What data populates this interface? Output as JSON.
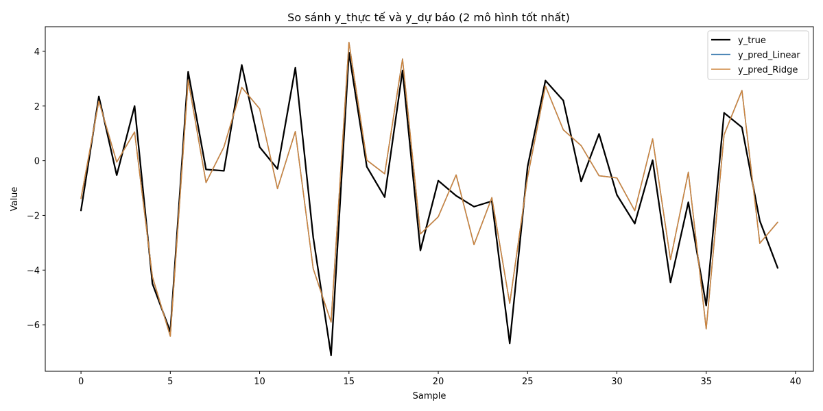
{
  "chart_data": {
    "type": "line",
    "title": "So sánh y_thực tế và y_dự báo (2 mô hình tốt nhất)",
    "xlabel": "Sample",
    "ylabel": "Value",
    "xlim": [
      -2,
      41
    ],
    "ylim": [
      -7.7,
      4.9
    ],
    "xticks": [
      0,
      5,
      10,
      15,
      20,
      25,
      30,
      35,
      40
    ],
    "yticks": [
      -6,
      -4,
      -2,
      0,
      2,
      4
    ],
    "legend_position": "top-right",
    "grid": false,
    "x": [
      0,
      1,
      2,
      3,
      4,
      5,
      6,
      7,
      8,
      9,
      10,
      11,
      12,
      13,
      14,
      15,
      16,
      17,
      18,
      19,
      20,
      21,
      22,
      23,
      24,
      25,
      26,
      27,
      28,
      29,
      30,
      31,
      32,
      33,
      34,
      35,
      36,
      37,
      38,
      39
    ],
    "series": [
      {
        "name": "y_true",
        "color": "#000000",
        "width": 2.3,
        "values": [
          -1.82,
          2.35,
          -0.53,
          2.0,
          -4.5,
          -6.25,
          3.25,
          -0.32,
          -0.37,
          3.5,
          0.5,
          -0.3,
          3.4,
          -2.8,
          -7.12,
          3.95,
          -0.22,
          -1.33,
          3.3,
          -3.28,
          -0.73,
          -1.28,
          -1.68,
          -1.48,
          -6.68,
          -0.22,
          2.93,
          2.2,
          -0.76,
          0.98,
          -1.25,
          -2.3,
          0.02,
          -4.45,
          -1.52,
          -5.3,
          1.75,
          1.22,
          -2.2,
          -3.92
        ]
      },
      {
        "name": "y_pred_Linear",
        "color": "#4682b4",
        "width": 1.6,
        "values": [
          -1.38,
          2.18,
          -0.05,
          1.05,
          -4.25,
          -6.42,
          2.95,
          -0.8,
          0.5,
          2.68,
          1.9,
          -1.02,
          1.07,
          -3.95,
          -5.9,
          4.33,
          0.02,
          -0.48,
          3.72,
          -2.68,
          -2.05,
          -0.52,
          -3.07,
          -1.35,
          -5.22,
          -0.6,
          2.73,
          1.13,
          0.55,
          -0.55,
          -0.63,
          -1.83,
          0.8,
          -3.62,
          -0.42,
          -6.15,
          0.95,
          2.57,
          -3.02,
          -2.25
        ]
      },
      {
        "name": "y_pred_Ridge",
        "color": "#cd853f",
        "width": 1.6,
        "values": [
          -1.38,
          2.18,
          -0.05,
          1.05,
          -4.25,
          -6.42,
          2.95,
          -0.8,
          0.5,
          2.68,
          1.9,
          -1.02,
          1.07,
          -3.95,
          -5.9,
          4.33,
          0.02,
          -0.48,
          3.72,
          -2.68,
          -2.05,
          -0.52,
          -3.07,
          -1.35,
          -5.22,
          -0.6,
          2.73,
          1.13,
          0.55,
          -0.55,
          -0.63,
          -1.83,
          0.8,
          -3.62,
          -0.42,
          -6.15,
          0.95,
          2.57,
          -3.02,
          -2.25
        ]
      }
    ]
  }
}
